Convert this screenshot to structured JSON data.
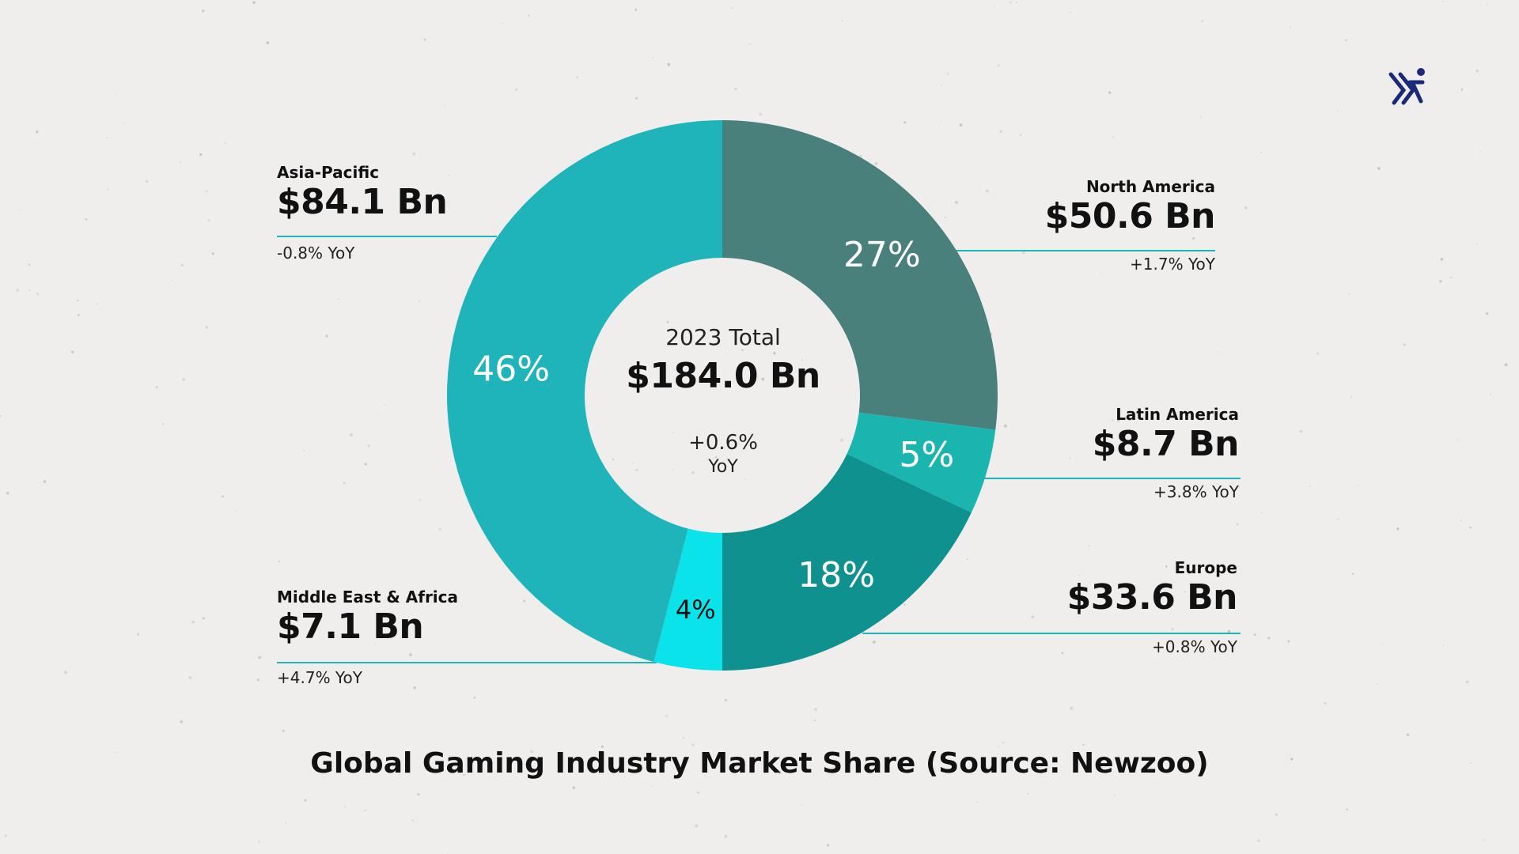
{
  "chart_data": {
    "type": "pie",
    "variant": "donut",
    "caption": "Global Gaming Industry Market Share (Source: Newzoo)",
    "center": {
      "label": "2023 Total",
      "value": "$184.0 Bn",
      "change": "+0.6%",
      "change_unit": "YoY"
    },
    "slices": [
      {
        "name": "North America",
        "share": 27,
        "share_label": "27%",
        "value": "$50.6 Bn",
        "yoy": "+1.7% YoY",
        "color": "#4a807c"
      },
      {
        "name": "Latin America",
        "share": 5,
        "share_label": "5%",
        "value": "$8.7 Bn",
        "yoy": "+3.8% YoY",
        "color": "#1bb5b0"
      },
      {
        "name": "Europe",
        "share": 18,
        "share_label": "18%",
        "value": "$33.6 Bn",
        "yoy": "+0.8% YoY",
        "color": "#0f9190"
      },
      {
        "name": "Middle East & Africa",
        "share": 4,
        "share_label": "4%",
        "value": "$7.1 Bn",
        "yoy": "+4.7% YoY",
        "color": "#0be3ea"
      },
      {
        "name": "Asia-Pacific",
        "share": 46,
        "share_label": "46%",
        "value": "$84.1 Bn",
        "yoy": "-0.8% YoY",
        "color": "#1fb4b9"
      }
    ],
    "leader_line_color": "#1fb4b9",
    "background": "#efeeec"
  },
  "logo": {
    "icon": "runner-logo-icon",
    "color": "#1a2a7a"
  }
}
